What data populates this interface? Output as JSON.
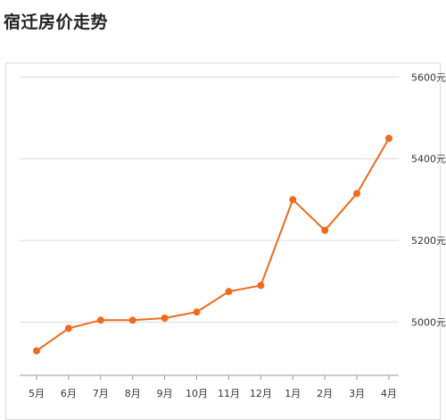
{
  "title": "宿迁房价走势",
  "chart_data": {
    "type": "line",
    "title": "宿迁房价走势",
    "xlabel": "",
    "ylabel": "",
    "categories": [
      "5月",
      "6月",
      "7月",
      "8月",
      "9月",
      "10月",
      "11月",
      "12月",
      "1月",
      "2月",
      "3月",
      "4月"
    ],
    "series": [
      {
        "values": [
          4930,
          4985,
          5005,
          5005,
          5010,
          5025,
          5075,
          5090,
          5300,
          5225,
          5315,
          5450
        ]
      }
    ],
    "yticks": [
      5000,
      5200,
      5400,
      5600
    ],
    "ytick_labels": [
      "5000元",
      "5200元",
      "5400元",
      "5600元"
    ],
    "ylim": [
      4870,
      5640
    ],
    "grid": true,
    "legend": "none",
    "colors": {
      "line": "#ee6a1c",
      "grid": "#dcdcdc",
      "axis": "#999999"
    }
  }
}
